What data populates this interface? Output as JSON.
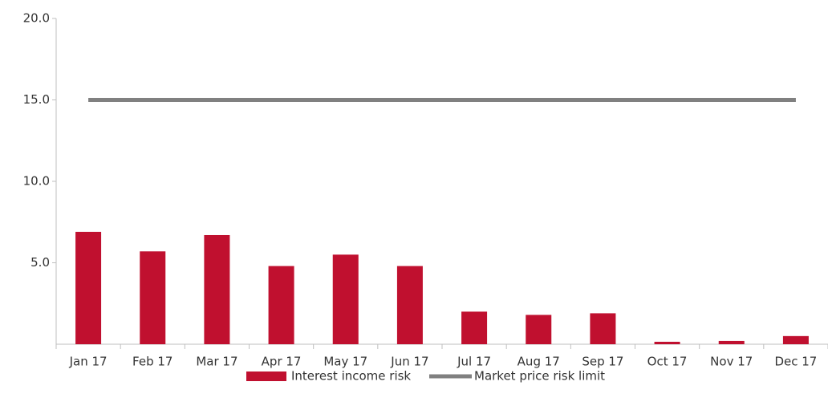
{
  "chart_data": {
    "type": "bar",
    "categories": [
      "Jan 17",
      "Feb 17",
      "Mar 17",
      "Apr 17",
      "May 17",
      "Jun 17",
      "Jul 17",
      "Aug 17",
      "Sep 17",
      "Oct 17",
      "Nov 17",
      "Dec 17"
    ],
    "series": [
      {
        "name": "Interest income risk",
        "type": "bar",
        "color": "#c0102f",
        "values": [
          6.9,
          5.7,
          6.7,
          4.8,
          5.5,
          4.8,
          2.0,
          1.8,
          1.9,
          0.15,
          0.2,
          0.5
        ]
      },
      {
        "name": "Market price risk limit",
        "type": "line",
        "color": "#808080",
        "values": [
          15,
          15,
          15,
          15,
          15,
          15,
          15,
          15,
          15,
          15,
          15,
          15
        ]
      }
    ],
    "ylim": [
      0,
      20
    ],
    "yticks": [
      {
        "value": 5,
        "label": "5.0"
      },
      {
        "value": 10,
        "label": "10.0"
      },
      {
        "value": 15,
        "label": "15.0"
      },
      {
        "value": 20,
        "label": "20.0"
      }
    ],
    "grid": false,
    "legend": "bottom"
  }
}
